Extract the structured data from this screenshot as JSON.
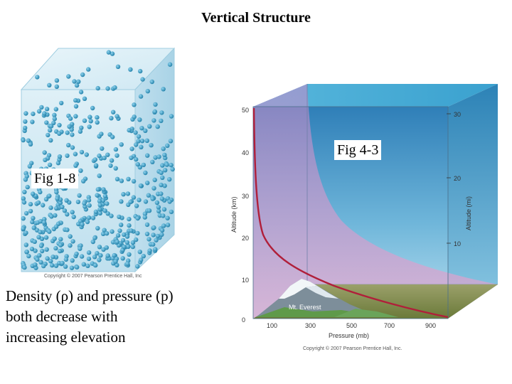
{
  "title": "Vertical Structure",
  "fig_left_label": "Fig  1-8",
  "fig_right_label": "Fig  4-3",
  "caption_lines": [
    "Density (ρ) and pressure (p)",
    "both decrease with",
    "increasing elevation"
  ],
  "left_figure": {
    "copyright": "Copyright © 2007 Pearson Prentice Hall, Inc"
  },
  "right_figure": {
    "copyright": "Copyright © 2007 Pearson Prentice Hall, Inc.",
    "y_left_label": "Altitude (km)",
    "y_right_label": "Altitude (mi)",
    "x_label": "Pressure (mb)",
    "mountain_label": "Mt. Everest",
    "km_ticks": [
      "0",
      "10",
      "20",
      "30",
      "40",
      "50"
    ],
    "mi_ticks": [
      "10",
      "20",
      "30"
    ],
    "pressure_ticks": [
      "100",
      "300",
      "500",
      "700",
      "900"
    ]
  },
  "colors": {
    "curve": "#b01f3a",
    "box_blue": "#2f8fb8",
    "molecule": "#3399bb"
  }
}
